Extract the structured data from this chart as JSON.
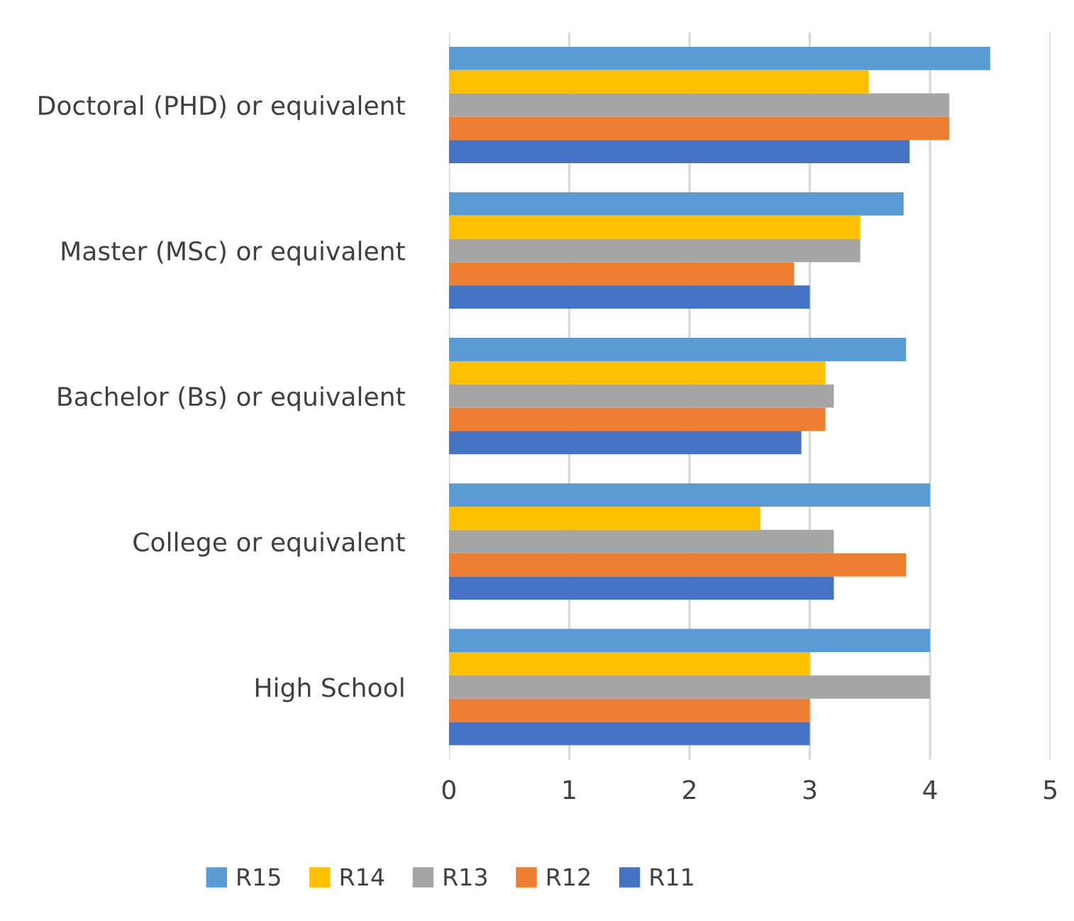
{
  "chart_data": {
    "type": "bar",
    "orientation": "horizontal",
    "categories": [
      "Doctoral (PHD) or equivalent",
      "Master (MSc) or equivalent",
      "Bachelor (Bs) or equivalent",
      "College or equivalent",
      "High School"
    ],
    "series": [
      {
        "name": "R15",
        "color": "#5b9bd5",
        "values": [
          4.5,
          3.78,
          3.8,
          4.0,
          4.0
        ]
      },
      {
        "name": "R14",
        "color": "#ffc000",
        "values": [
          3.49,
          3.42,
          3.13,
          2.59,
          3.0
        ]
      },
      {
        "name": "R13",
        "color": "#a5a5a5",
        "values": [
          4.16,
          3.42,
          3.2,
          3.2,
          4.0
        ]
      },
      {
        "name": "R12",
        "color": "#ed7d31",
        "values": [
          4.16,
          2.87,
          3.13,
          3.8,
          3.0
        ]
      },
      {
        "name": "R11",
        "color": "#4472c4",
        "values": [
          3.83,
          3.0,
          2.93,
          3.2,
          3.0
        ]
      }
    ],
    "xlim": [
      0,
      5
    ],
    "xticks": [
      0,
      1,
      2,
      3,
      4,
      5
    ],
    "grid": "x",
    "legend": "bottom"
  }
}
